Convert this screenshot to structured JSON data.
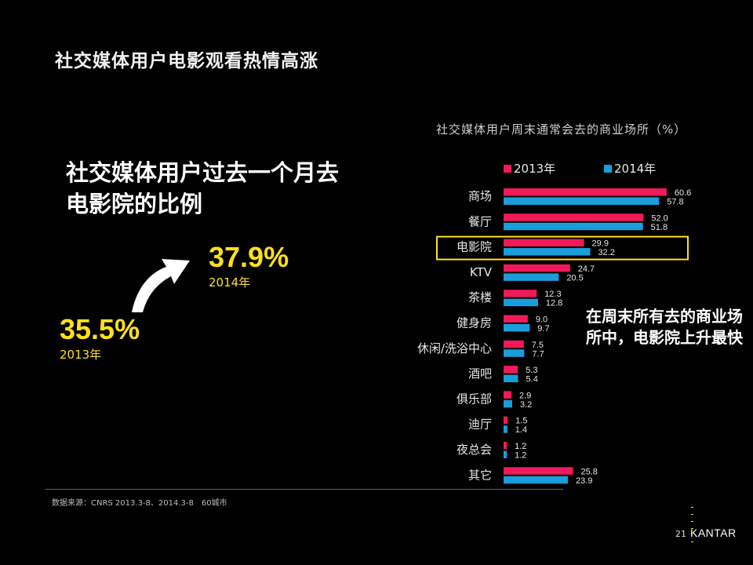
{
  "slide": {
    "title": "社交媒体用户电影观看热情高涨",
    "headline": "社交媒体用户过去一个月去电影院的比例",
    "stat_2014": {
      "value": "37.9%",
      "year": "2014年"
    },
    "stat_2013": {
      "value": "35.5%",
      "year": "2013年"
    },
    "annotation": "在周末所有去的商业场所中，电影院上升最快",
    "source": "数据来源：CNRS 2013.3-8、2014.3-8　60城市",
    "page_number": "21",
    "logo": "KANTAR"
  },
  "colors": {
    "series_2013": "#f0195a",
    "series_2014": "#1a9ddb",
    "highlight": "#ffe01b"
  },
  "chart_data": {
    "type": "bar",
    "orientation": "horizontal",
    "title": "社交媒体用户周末通常会去的商业场所（%）",
    "categories": [
      "商场",
      "餐厅",
      "电影院",
      "KTV",
      "茶楼",
      "健身房",
      "休闲/洗浴中心",
      "酒吧",
      "俱乐部",
      "迪厅",
      "夜总会",
      "其它"
    ],
    "series": [
      {
        "name": "2013年",
        "values": [
          60.6,
          52.0,
          29.9,
          24.7,
          12.3,
          9.0,
          7.5,
          5.3,
          2.9,
          1.5,
          1.2,
          25.8
        ]
      },
      {
        "name": "2014年",
        "values": [
          57.8,
          51.8,
          32.2,
          20.5,
          12.8,
          9.7,
          7.7,
          5.4,
          3.2,
          1.4,
          1.2,
          23.9
        ]
      }
    ],
    "highlighted_category": "电影院",
    "legend_position": "top",
    "grid": false
  }
}
